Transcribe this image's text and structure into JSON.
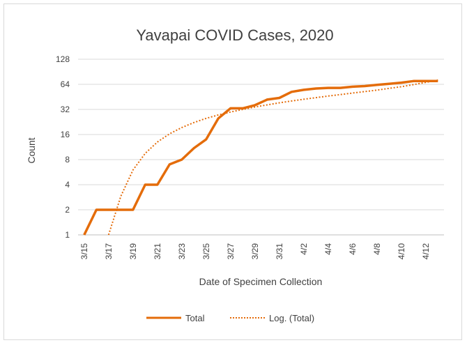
{
  "chart_data": {
    "type": "line",
    "title": "Yavapai COVID Cases, 2020",
    "xlabel": "Date of Specimen Collection",
    "ylabel": "Count",
    "y_scale": "log2",
    "y_ticks": [
      "1",
      "2",
      "4",
      "8",
      "16",
      "32",
      "64",
      "128"
    ],
    "ylim": [
      1,
      128
    ],
    "x_tick_labels": [
      "3/15",
      "3/17",
      "3/19",
      "3/21",
      "3/23",
      "3/25",
      "3/27",
      "3/29",
      "3/31",
      "4/2",
      "4/4",
      "4/6",
      "4/8",
      "4/10",
      "4/12"
    ],
    "x": [
      "3/15",
      "3/16",
      "3/17",
      "3/18",
      "3/19",
      "3/20",
      "3/21",
      "3/22",
      "3/23",
      "3/24",
      "3/25",
      "3/26",
      "3/27",
      "3/28",
      "3/29",
      "3/30",
      "3/31",
      "4/1",
      "4/2",
      "4/3",
      "4/4",
      "4/5",
      "4/6",
      "4/7",
      "4/8",
      "4/9",
      "4/10",
      "4/11",
      "4/12",
      "4/13"
    ],
    "series": [
      {
        "name": "Total",
        "style": "solid",
        "color": "#E46C0A",
        "values": [
          1,
          2,
          2,
          2,
          2,
          4,
          4,
          7,
          8,
          11,
          14,
          25,
          33,
          33,
          36,
          42,
          44,
          52,
          55,
          57,
          58,
          58,
          60,
          61,
          63,
          65,
          67,
          70,
          70,
          70
        ]
      },
      {
        "name": "Log. (Total)",
        "style": "dotted",
        "color": "#E46C0A",
        "values": [
          null,
          null,
          0.8,
          2.9,
          6,
          9.5,
          13,
          16.3,
          19.4,
          22.3,
          25,
          27.5,
          29.8,
          32,
          34.2,
          36.3,
          38.4,
          40.4,
          42.4,
          44.3,
          46.3,
          48.2,
          50.3,
          52.4,
          54.6,
          57.2,
          60,
          63.5,
          67.5,
          72
        ]
      }
    ],
    "gridlines": true,
    "legend_position": "bottom"
  }
}
